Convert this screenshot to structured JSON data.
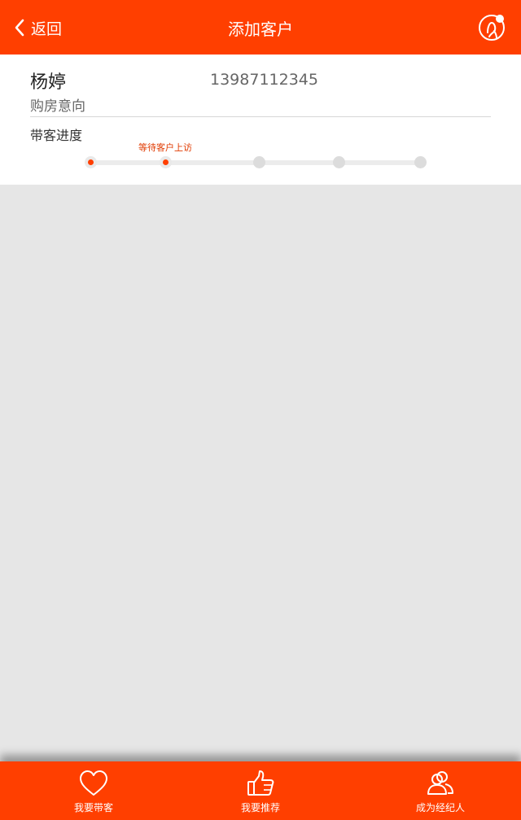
{
  "header": {
    "back_label": "返回",
    "title": "添加客户",
    "icons": {
      "back": "chevron-left-icon",
      "profile": "user-profile-icon"
    }
  },
  "customer": {
    "name": "杨婷",
    "phone": "13987112345",
    "intent_label": "购房意向",
    "progress_label": "带客进度",
    "current_step_caption": "等待客户上访",
    "steps_total": 5,
    "current_step": 2
  },
  "tabbar": {
    "items": [
      {
        "label": "我要带客",
        "icon": "heart-icon"
      },
      {
        "label": "我要推荐",
        "icon": "thumbs-up-icon"
      },
      {
        "label": "成为经纪人",
        "icon": "users-icon"
      }
    ]
  },
  "colors": {
    "brand": "#ff3f00",
    "background": "#e6e6e6",
    "card": "#ffffff"
  }
}
